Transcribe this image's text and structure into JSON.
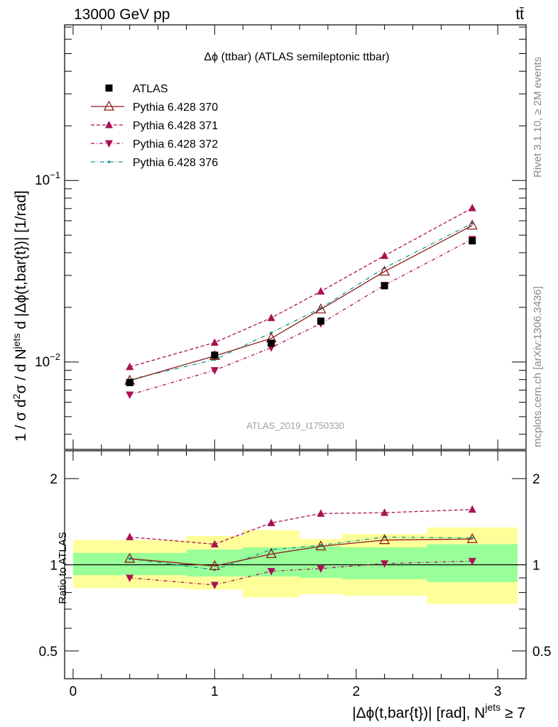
{
  "header": {
    "left": "13000 GeV pp",
    "right": "tt̄"
  },
  "side_texts": {
    "rivet": "Rivet 3.1.10, ≥ 2M events",
    "mcplots": "mcplots.cern.ch [arXiv:1306.3436]"
  },
  "chart_data": {
    "type": "line",
    "title": "Δϕ (ttbar) (ATLAS semileptonic ttbar)",
    "watermark": "ATLAS_2019_I1750330",
    "xlabel": "|Δϕ(t,bar{t})| [rad], N^jets ≥ 7",
    "xlabel_parts": {
      "main": "|Δϕ(t,bar{t})| [rad], N",
      "sup": "jets",
      "tail": " ≥ 7"
    },
    "ylabel": "1 / σ d²σ / d N^jets d |Δϕ(t,bar{t})| [1/rad]",
    "ylabel_parts": {
      "a": "1 / σ d",
      "sup1": "2",
      "b": "σ / d N",
      "sup2": "jets",
      "c": " d |Δϕ(t,bar{t})| [1/rad]"
    },
    "ratio_ylabel": "Ratio to ATLAS",
    "xlim": [
      -0.06,
      3.2
    ],
    "ylim": [
      0.0033,
      0.72
    ],
    "yscale": "log",
    "ratio_ylim": [
      0.4,
      2.5
    ],
    "ratio_yscale": "log",
    "x_ticks": [
      "0",
      "1",
      "2",
      "3"
    ],
    "y_tick_labels": [
      {
        "base": "10",
        "exp": "−2",
        "value": 0.01
      },
      {
        "base": "10",
        "exp": "−1",
        "value": 0.1
      }
    ],
    "ratio_tick_labels": [
      "0.5",
      "1",
      "2"
    ],
    "bins": [
      [
        0,
        0.8
      ],
      [
        0.8,
        1.2
      ],
      [
        1.2,
        1.6
      ],
      [
        1.6,
        1.9
      ],
      [
        1.9,
        2.5
      ],
      [
        2.5,
        3.14
      ]
    ],
    "band_inner": [
      [
        0.92,
        1.1
      ],
      [
        0.91,
        1.13
      ],
      [
        0.91,
        1.15
      ],
      [
        0.9,
        1.16
      ],
      [
        0.89,
        1.15
      ],
      [
        0.87,
        1.18
      ]
    ],
    "band_outer": [
      [
        0.83,
        1.22
      ],
      [
        0.82,
        1.26
      ],
      [
        0.77,
        1.32
      ],
      [
        0.79,
        1.23
      ],
      [
        0.78,
        1.28
      ],
      [
        0.73,
        1.35
      ]
    ],
    "x": [
      0.4,
      1.0,
      1.4,
      1.75,
      2.2,
      2.82
    ],
    "legend_position": "top-left",
    "series": [
      {
        "name": "ATLAS",
        "marker": "square",
        "color": "#000000",
        "dash": "",
        "values": [
          0.0077,
          0.0109,
          0.0127,
          0.0168,
          0.0263,
          0.0465
        ],
        "ratio": [
          1.0,
          1.0,
          1.0,
          1.0,
          1.0,
          1.0
        ]
      },
      {
        "name": "Pythia 6.428 370",
        "marker": "open-triangle",
        "color": "#8b1a1a",
        "dash": "",
        "values": [
          0.0079,
          0.0108,
          0.0135,
          0.0195,
          0.0315,
          0.0565
        ],
        "ratio": [
          1.05,
          0.99,
          1.09,
          1.16,
          1.22,
          1.23
        ]
      },
      {
        "name": "Pythia 6.428 371",
        "marker": "triangle-up",
        "color": "#aa1155",
        "dash": "5,3",
        "values": [
          0.0094,
          0.0128,
          0.0175,
          0.0245,
          0.0385,
          0.0705
        ],
        "ratio": [
          1.25,
          1.18,
          1.4,
          1.51,
          1.52,
          1.56
        ]
      },
      {
        "name": "Pythia 6.428 372",
        "marker": "triangle-down",
        "color": "#aa1155",
        "dash": "5,3,1,3",
        "values": [
          0.0066,
          0.009,
          0.012,
          0.0163,
          0.0265,
          0.0475
        ],
        "ratio": [
          0.9,
          0.85,
          0.95,
          0.97,
          1.01,
          1.03
        ]
      },
      {
        "name": "Pythia 6.428 376",
        "marker": "dot",
        "color": "#11998e",
        "dash": "6,3,1,3",
        "values": [
          0.008,
          0.0103,
          0.0145,
          0.0198,
          0.033,
          0.058
        ],
        "ratio": [
          1.05,
          0.96,
          1.13,
          1.17,
          1.25,
          1.24
        ]
      }
    ]
  }
}
